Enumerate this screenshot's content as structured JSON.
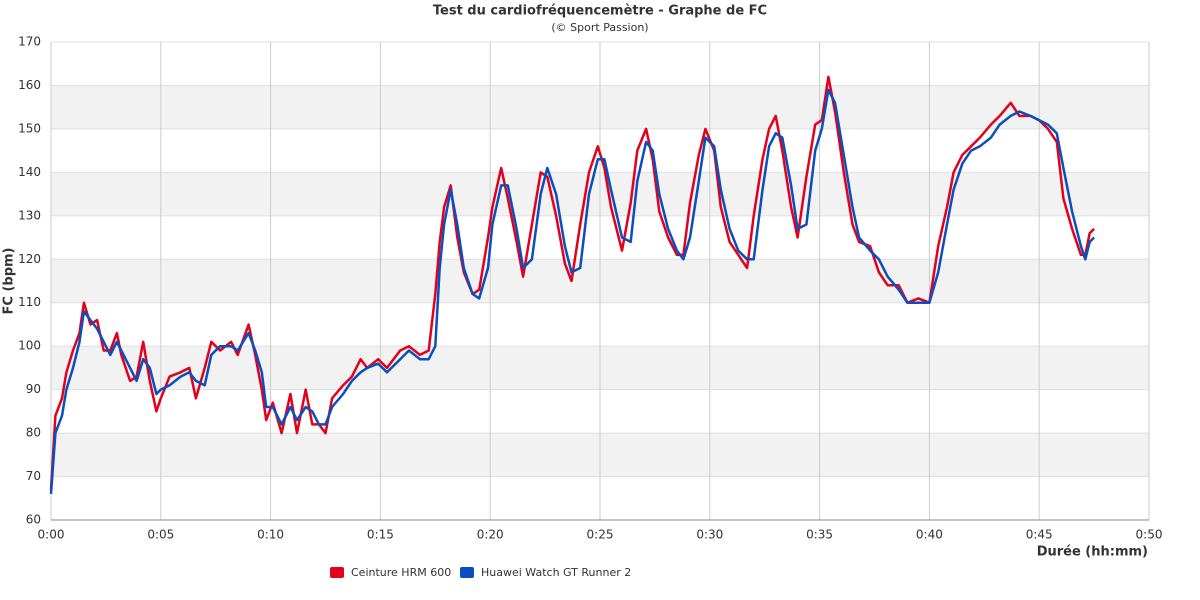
{
  "chart_data": {
    "type": "line",
    "title": "Test du cardiofréquencemètre - Graphe de FC",
    "subtitle": "(© Sport Passion)",
    "x_label": "Durée (hh:mm)",
    "y_label": "FC (bpm)",
    "xlim": [
      0,
      50
    ],
    "xticks": [
      {
        "value": 0,
        "label": "0:00"
      },
      {
        "value": 5,
        "label": "0:05"
      },
      {
        "value": 10,
        "label": "0:10"
      },
      {
        "value": 15,
        "label": "0:15"
      },
      {
        "value": 20,
        "label": "0:20"
      },
      {
        "value": 25,
        "label": "0:25"
      },
      {
        "value": 30,
        "label": "0:30"
      },
      {
        "value": 35,
        "label": "0:35"
      },
      {
        "value": 40,
        "label": "0:40"
      },
      {
        "value": 45,
        "label": "0:45"
      },
      {
        "value": 50,
        "label": "0:50"
      }
    ],
    "ylim": [
      60,
      170
    ],
    "yticks": [
      60,
      70,
      80,
      90,
      100,
      110,
      120,
      130,
      140,
      150,
      160,
      170
    ],
    "grid": true,
    "alternate_bands": true,
    "legend": "bottom",
    "x": [
      0,
      0.2,
      0.5,
      0.7,
      1.0,
      1.3,
      1.5,
      1.8,
      2.1,
      2.4,
      2.7,
      3.0,
      3.2,
      3.6,
      3.9,
      4.2,
      4.5,
      4.8,
      5.0,
      5.4,
      5.9,
      6.3,
      6.6,
      7.0,
      7.3,
      7.7,
      8.2,
      8.5,
      9.0,
      9.3,
      9.6,
      9.8,
      10.1,
      10.5,
      10.9,
      11.2,
      11.6,
      11.9,
      12.2,
      12.5,
      12.8,
      13.3,
      13.7,
      14.1,
      14.4,
      14.9,
      15.3,
      15.9,
      16.3,
      16.8,
      17.2,
      17.5,
      17.7,
      17.9,
      18.2,
      18.5,
      18.8,
      19.2,
      19.5,
      19.9,
      20.1,
      20.5,
      20.8,
      21.2,
      21.5,
      21.9,
      22.3,
      22.6,
      23.0,
      23.4,
      23.7,
      24.1,
      24.5,
      24.9,
      25.2,
      25.5,
      26.0,
      26.4,
      26.7,
      27.1,
      27.4,
      27.7,
      28.1,
      28.5,
      28.8,
      29.1,
      29.5,
      29.8,
      30.2,
      30.5,
      30.9,
      31.3,
      31.7,
      32.0,
      32.4,
      32.7,
      33.0,
      33.3,
      33.7,
      34.0,
      34.4,
      34.8,
      35.1,
      35.4,
      35.7,
      36.1,
      36.5,
      36.8,
      37.3,
      37.7,
      38.1,
      38.6,
      39.0,
      39.5,
      40.0,
      40.4,
      40.8,
      41.1,
      41.5,
      41.9,
      42.3,
      42.8,
      43.2,
      43.7,
      44.1,
      44.6,
      45.0,
      45.4,
      45.8,
      46.1,
      46.5,
      46.9,
      47.1,
      47.3,
      47.5
    ],
    "series": [
      {
        "name": "Ceinture HRM 600",
        "color": "#e3001b",
        "values": [
          67,
          84,
          88,
          94,
          99,
          103,
          110,
          105,
          106,
          99,
          99,
          103,
          98,
          92,
          93,
          101,
          92,
          85,
          88,
          93,
          94,
          95,
          88,
          95,
          101,
          99,
          101,
          98,
          105,
          98,
          90,
          83,
          87,
          80,
          89,
          80,
          90,
          82,
          82,
          80,
          88,
          91,
          93,
          97,
          95,
          97,
          95,
          99,
          100,
          98,
          99,
          112,
          124,
          132,
          137,
          125,
          117,
          112,
          113,
          125,
          132,
          141,
          134,
          124,
          116,
          128,
          140,
          139,
          130,
          119,
          115,
          128,
          140,
          146,
          141,
          132,
          122,
          133,
          145,
          150,
          143,
          131,
          125,
          121,
          121,
          133,
          144,
          150,
          145,
          132,
          124,
          121,
          118,
          130,
          143,
          150,
          153,
          145,
          132,
          125,
          139,
          151,
          152,
          162,
          154,
          140,
          128,
          124,
          123,
          117,
          114,
          114,
          110,
          111,
          110,
          123,
          132,
          140,
          144,
          146,
          148,
          151,
          153,
          156,
          153,
          153,
          152,
          150,
          147,
          134,
          127,
          121,
          121,
          126,
          127
        ]
      },
      {
        "name": "Huawei Watch GT Runner 2",
        "color": "#0a4fbf",
        "values": [
          66,
          80,
          84,
          90,
          95,
          101,
          108,
          106,
          104,
          101,
          98,
          101,
          99,
          95,
          92,
          97,
          95,
          89,
          90,
          91,
          93,
          94,
          92,
          91,
          98,
          100,
          100,
          99,
          103,
          99,
          94,
          86,
          86,
          82,
          86,
          83,
          86,
          85,
          82,
          82,
          86,
          89,
          92,
          94,
          95,
          96,
          94,
          97,
          99,
          97,
          97,
          100,
          118,
          128,
          136,
          128,
          118,
          112,
          111,
          118,
          128,
          137,
          137,
          127,
          118,
          120,
          135,
          141,
          135,
          123,
          117,
          118,
          135,
          143,
          143,
          136,
          125,
          124,
          138,
          147,
          145,
          135,
          127,
          122,
          120,
          125,
          138,
          148,
          146,
          136,
          127,
          122,
          120,
          120,
          136,
          146,
          149,
          148,
          137,
          127,
          128,
          145,
          150,
          159,
          156,
          144,
          132,
          125,
          122,
          120,
          116,
          113,
          110,
          110,
          110,
          117,
          128,
          136,
          142,
          145,
          146,
          148,
          151,
          153,
          154,
          153,
          152,
          151,
          149,
          141,
          131,
          123,
          120,
          124,
          125
        ]
      }
    ]
  }
}
